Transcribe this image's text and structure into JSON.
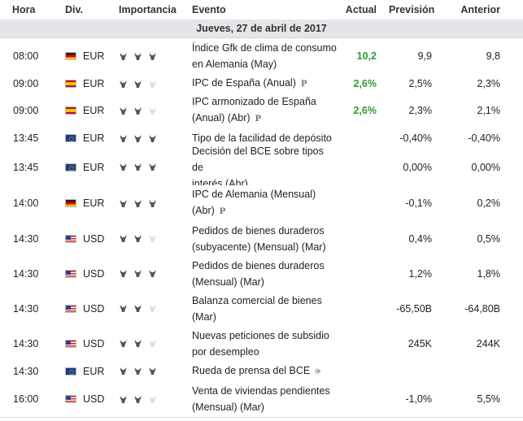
{
  "headers": {
    "time": "Hora",
    "currency": "Div.",
    "importance": "Importancia",
    "event": "Evento",
    "actual": "Actual",
    "forecast": "Previsión",
    "previous": "Anterior"
  },
  "day_label": "Jueves, 27 de abril de 2017",
  "colors": {
    "actual_better": "#2b9b2b",
    "day_bg": "#e6e6ea",
    "bull_on": "#555555",
    "bull_off": "#dddddd"
  },
  "events": [
    {
      "time": "08:00",
      "flag": "de",
      "currency": "EUR",
      "importance": 3,
      "event_line1": "Índice Gfk de clima de consumo",
      "event_line2": "en Alemania (May)",
      "badge": "",
      "actual": "10,2",
      "forecast": "9,9",
      "previous": "9,8"
    },
    {
      "time": "09:00",
      "flag": "es",
      "currency": "EUR",
      "importance": 2,
      "event_line1": "IPC de España (Anual)",
      "event_line2": "",
      "badge": "P",
      "actual": "2,6%",
      "forecast": "2,5%",
      "previous": "2,3%"
    },
    {
      "time": "09:00",
      "flag": "es",
      "currency": "EUR",
      "importance": 2,
      "event_line1": "IPC armonizado de España",
      "event_line2": "(Anual) (Abr)",
      "badge": "P",
      "actual": "2,6%",
      "forecast": "2,3%",
      "previous": "2,1%"
    },
    {
      "time": "13:45",
      "flag": "eu",
      "currency": "EUR",
      "importance": 3,
      "event_line1": "Tipo de la facilidad de depósito",
      "event_line2": "",
      "badge": "",
      "actual": "",
      "forecast": "-0,40%",
      "previous": "-0,40%"
    },
    {
      "time": "13:45",
      "flag": "eu",
      "currency": "EUR",
      "importance": 3,
      "event_line1": "Decisión del BCE sobre tipos de",
      "event_line2": "interés (Abr)",
      "badge": "",
      "actual": "",
      "forecast": "0,00%",
      "previous": "0,00%"
    },
    {
      "time": "14:00",
      "flag": "de",
      "currency": "EUR",
      "importance": 3,
      "event_line1": "IPC de Alemania (Mensual)",
      "event_line2": "(Abr)",
      "badge": "P",
      "actual": "",
      "forecast": "-0,1%",
      "previous": "0,2%"
    },
    {
      "time": "14:30",
      "flag": "us",
      "currency": "USD",
      "importance": 2,
      "event_line1": "Pedidos de bienes duraderos",
      "event_line2": "(subyacente) (Mensual) (Mar)",
      "badge": "",
      "actual": "",
      "forecast": "0,4%",
      "previous": "0,5%"
    },
    {
      "time": "14:30",
      "flag": "us",
      "currency": "USD",
      "importance": 3,
      "event_line1": "Pedidos de bienes duraderos",
      "event_line2": "(Mensual) (Mar)",
      "badge": "",
      "actual": "",
      "forecast": "1,2%",
      "previous": "1,8%"
    },
    {
      "time": "14:30",
      "flag": "us",
      "currency": "USD",
      "importance": 2,
      "event_line1": "Balanza comercial de bienes",
      "event_line2": "(Mar)",
      "badge": "",
      "actual": "",
      "forecast": "-65,50B",
      "previous": "-64,80B"
    },
    {
      "time": "14:30",
      "flag": "us",
      "currency": "USD",
      "importance": 2,
      "event_line1": "Nuevas peticiones de subsidio",
      "event_line2": "por desempleo",
      "badge": "",
      "actual": "",
      "forecast": "245K",
      "previous": "244K"
    },
    {
      "time": "14:30",
      "flag": "eu",
      "currency": "EUR",
      "importance": 3,
      "event_line1": "Rueda de prensa del BCE",
      "event_line2": "",
      "badge": "speaker-icon",
      "actual": "",
      "forecast": "",
      "previous": ""
    },
    {
      "time": "16:00",
      "flag": "us",
      "currency": "USD",
      "importance": 2,
      "event_line1": "Venta de viviendas pendientes",
      "event_line2": "(Mensual) (Mar)",
      "badge": "",
      "actual": "",
      "forecast": "-1,0%",
      "previous": "5,5%"
    }
  ]
}
